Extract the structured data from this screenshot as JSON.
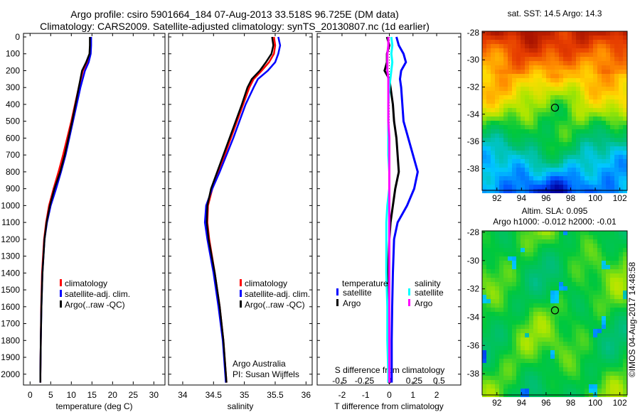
{
  "title_line1": "Argo profile: csiro 5901664_184 07-Aug-2013 33.518S 96.725E (DM data)",
  "title_line2": "Climatology: CARS2009. Satellite-adjusted climatology: synTS_20130807.nc (1d earlier)",
  "copyright": "©IMOS 04-Aug-2017 14:48:58",
  "colors": {
    "climatology": "#ff0000",
    "satellite": "#0000ff",
    "argo": "#000000",
    "sal_satellite": "#00ffff",
    "sal_argo": "#ff00ff"
  },
  "chart_data": [
    {
      "type": "line",
      "name": "temperature",
      "xlabel": "temperature (deg C)",
      "ylabel": "depth",
      "xlim": [
        -1.6,
        32.7
      ],
      "ylim": [
        2060,
        0
      ],
      "xticks": [
        0,
        5,
        10,
        15,
        20,
        25,
        30
      ],
      "yticks": [
        0,
        100,
        200,
        300,
        400,
        500,
        600,
        700,
        800,
        900,
        1000,
        1100,
        1200,
        1300,
        1400,
        1500,
        1600,
        1700,
        1800,
        1900,
        2000
      ],
      "depth": [
        0,
        50,
        100,
        150,
        200,
        300,
        400,
        500,
        600,
        700,
        800,
        900,
        1000,
        1100,
        1200,
        1400,
        1600,
        1800,
        2000,
        2050
      ],
      "series": [
        {
          "name": "climatology",
          "color": "#ff0000",
          "values": [
            14.6,
            14.6,
            14.5,
            13.8,
            12.8,
            11.8,
            10.9,
            10.0,
            9.0,
            8.0,
            6.9,
            5.7,
            4.6,
            3.9,
            3.4,
            2.9,
            2.7,
            2.6,
            2.5,
            2.5
          ]
        },
        {
          "name": "satellite-adj. clim.",
          "color": "#0000ff",
          "values": [
            14.8,
            14.8,
            14.7,
            14.2,
            13.3,
            12.2,
            11.3,
            10.4,
            9.5,
            8.6,
            7.5,
            6.3,
            5.0,
            4.1,
            3.5,
            3.0,
            2.75,
            2.6,
            2.5,
            2.5
          ]
        },
        {
          "name": "Argo(..raw -QC)",
          "color": "#000000",
          "values": [
            14.5,
            14.5,
            14.4,
            13.6,
            12.6,
            11.8,
            11.0,
            10.2,
            9.3,
            8.4,
            7.3,
            5.9,
            4.8,
            4.0,
            3.5,
            3.0,
            2.75,
            2.6,
            2.5,
            2.5
          ]
        }
      ]
    },
    {
      "type": "line",
      "name": "salinity",
      "xlabel": "salinity",
      "xlim": [
        33.77,
        36.1
      ],
      "ylim": [
        2060,
        0
      ],
      "xticks": [
        34,
        34.5,
        35,
        35.5,
        36
      ],
      "depth": [
        0,
        50,
        100,
        150,
        200,
        250,
        300,
        400,
        500,
        600,
        700,
        800,
        900,
        1000,
        1100,
        1200,
        1400,
        1600,
        1800,
        2000,
        2050
      ],
      "series": [
        {
          "name": "climatology",
          "color": "#ff0000",
          "values": [
            35.48,
            35.5,
            35.48,
            35.4,
            35.28,
            35.15,
            35.08,
            34.98,
            34.88,
            34.78,
            34.68,
            34.58,
            34.48,
            34.41,
            34.4,
            34.43,
            34.52,
            34.6,
            34.66,
            34.7,
            34.71
          ]
        },
        {
          "name": "satellite-adj. clim.",
          "color": "#0000ff",
          "values": [
            35.55,
            35.58,
            35.55,
            35.5,
            35.38,
            35.22,
            35.15,
            35.02,
            34.92,
            34.82,
            34.71,
            34.6,
            34.48,
            34.38,
            34.36,
            34.4,
            34.5,
            34.58,
            34.65,
            34.69,
            34.7
          ]
        },
        {
          "name": "Argo(..raw -QC)",
          "color": "#000000",
          "values": [
            35.45,
            35.47,
            35.44,
            35.35,
            35.25,
            35.12,
            35.05,
            34.96,
            34.86,
            34.76,
            34.66,
            34.56,
            34.46,
            34.4,
            34.39,
            34.42,
            34.52,
            34.6,
            34.66,
            34.7,
            34.71
          ]
        }
      ],
      "annotations": [
        "Argo Australia",
        "PI: Susan Wijffels"
      ]
    },
    {
      "type": "line",
      "name": "difference",
      "xlabel": "T difference from climatology",
      "x2label": "S difference from climatology",
      "xlim": [
        -3.05,
        3.02
      ],
      "ylim": [
        2060,
        0
      ],
      "xticks": [
        -2,
        -1,
        0,
        1,
        2
      ],
      "x2ticks": [
        -0.5,
        -0.25,
        0,
        0.25,
        0.5
      ],
      "depth": [
        0,
        50,
        100,
        150,
        200,
        250,
        300,
        400,
        500,
        600,
        700,
        800,
        900,
        1000,
        1100,
        1200,
        1400,
        1600,
        1800,
        2000,
        2050
      ],
      "legend_titles": [
        "temperature",
        "salinity"
      ],
      "series": [
        {
          "name": "satellite",
          "group": "temperature",
          "color": "#0000ff",
          "values": [
            0.3,
            0.4,
            0.6,
            0.7,
            0.5,
            0.45,
            0.5,
            0.55,
            0.6,
            0.8,
            1.0,
            1.2,
            1.05,
            0.75,
            0.35,
            0.2,
            0.15,
            0.12,
            0.1,
            0.1,
            0.1
          ]
        },
        {
          "name": "Argo",
          "group": "temperature",
          "color": "#000000",
          "values": [
            -0.1,
            0.0,
            -0.1,
            -0.1,
            -0.2,
            0.0,
            0.05,
            0.15,
            0.2,
            0.3,
            0.35,
            0.4,
            0.25,
            0.15,
            0.05,
            0.0,
            -0.05,
            -0.05,
            0.0,
            0.0,
            0.0
          ]
        },
        {
          "name": "satellite",
          "group": "salinity",
          "color": "#00ffff",
          "values": [
            0.02,
            0.03,
            0.02,
            0.03,
            0.02,
            0.01,
            0.0,
            -0.01,
            -0.01,
            -0.01,
            -0.01,
            0.0,
            0.0,
            -0.02,
            -0.03,
            -0.03,
            -0.03,
            -0.02,
            -0.02,
            -0.01,
            -0.01
          ]
        },
        {
          "name": "Argo",
          "group": "salinity",
          "color": "#ff00ff",
          "values": [
            -0.01,
            -0.01,
            -0.02,
            -0.02,
            -0.02,
            -0.01,
            -0.01,
            -0.01,
            -0.01,
            0.0,
            0.0,
            0.0,
            0.0,
            0.0,
            0.0,
            0.0,
            0.0,
            0.0,
            0.0,
            0.0,
            0.0
          ]
        }
      ]
    },
    {
      "type": "heatmap",
      "name": "sst-map",
      "title": "sat. SST: 14.5  Argo: 14.3",
      "xlim": [
        90.8,
        102.6
      ],
      "ylim": [
        -39.6,
        -27.9
      ],
      "xticks": [
        92,
        94,
        96,
        98,
        100,
        102
      ],
      "yticks": [
        -28,
        -30,
        -32,
        -34,
        -36,
        -38
      ],
      "marker": {
        "lon": 96.725,
        "lat": -33.518
      }
    },
    {
      "type": "heatmap",
      "name": "sla-map",
      "title": [
        "Altim. SLA: 0.095",
        "Argo h1000: -0.012 h2000: -0.01"
      ],
      "xlim": [
        90.8,
        102.6
      ],
      "ylim": [
        -39.5,
        -27.9
      ],
      "xticks": [
        92,
        94,
        96,
        98,
        100,
        102
      ],
      "yticks": [
        -28,
        -30,
        -32,
        -34,
        -36,
        -38
      ],
      "marker": {
        "lon": 96.725,
        "lat": -33.518
      }
    }
  ]
}
